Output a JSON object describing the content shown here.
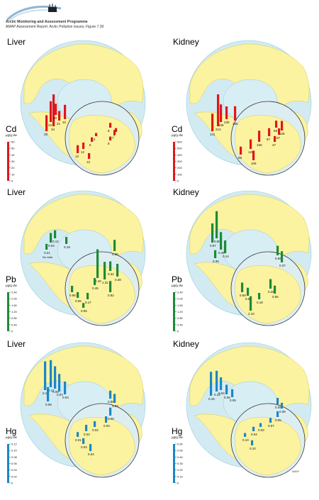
{
  "header": {
    "organization": "Arctic Monitoring and Assessment Programme",
    "report": "AMAP Assessment Report: Arctic Pollution Issues, Figure 7.39"
  },
  "credit": "AMAP",
  "colors": {
    "ocean": "#d2ebf2",
    "land": "#fbf3a0",
    "sea": "#d7eef4",
    "cd": "#e0161d",
    "pb": "#1e8a36",
    "hg": "#1b87c4"
  },
  "panels": [
    {
      "id": "cd-liver",
      "organ": "Liver",
      "metal": "Cd",
      "unit": "µg/g dw",
      "color": "#e0161d",
      "scale": {
        "max": 60,
        "ticks": [
          0,
          10,
          20,
          30,
          40,
          50,
          60
        ]
      },
      "main_labels": [
        "28",
        "34",
        "23",
        "22",
        "21",
        "20",
        "8",
        "7"
      ],
      "inset_labels": [
        "8",
        "9",
        "4",
        "6",
        "12",
        "13",
        "12"
      ],
      "no_data": ""
    },
    {
      "id": "cd-kidney",
      "organ": "Kidney",
      "metal": "Cd",
      "unit": "µg/g dw",
      "color": "#e0161d",
      "scale": {
        "max": 600,
        "ticks": [
          0,
          100,
          200,
          300,
          400,
          500,
          600
        ]
      },
      "main_labels": [
        "141",
        "213",
        "106",
        "155",
        "229",
        "47",
        "67"
      ],
      "inset_labels": [
        "68",
        "128",
        "87",
        "160",
        "129",
        "88",
        "109"
      ],
      "no_data": ""
    },
    {
      "id": "pb-liver",
      "organ": "Liver",
      "metal": "Pb",
      "unit": "µg/g dw",
      "color": "#1e8a36",
      "scale": {
        "max": 2.4,
        "ticks": [
          "0",
          "0.40",
          "0.80",
          "1.20",
          "1.60",
          "2.00",
          "2.40"
        ]
      },
      "main_labels": [
        "0.04",
        "0.12",
        "0.19",
        "0.21",
        "0.36",
        "0.32",
        "0.38",
        "2.40",
        "1.31"
      ],
      "inset_labels": [
        "0.98",
        "0.06",
        "0.17",
        "0.45",
        "0.05",
        "0.82"
      ],
      "no_data": "No data"
    },
    {
      "id": "pb-kidney",
      "organ": "Kidney",
      "metal": "Pb",
      "unit": "µg/g dw",
      "color": "#1e8a36",
      "scale": {
        "max": 2.4,
        "ticks": [
          "0",
          "0.40",
          "0.80",
          "1.20",
          "1.60",
          "2.00",
          "2.40"
        ]
      },
      "main_labels": [
        "0.97",
        "0.80",
        "0.46",
        "0.14",
        "0.36",
        "0.56",
        "0.37"
      ],
      "inset_labels": [
        "0.59",
        "0.50",
        "0.18",
        "0.25",
        "0.55",
        "2.10"
      ],
      "no_data": ""
    },
    {
      "id": "hg-liver",
      "organ": "Liver",
      "metal": "Hg",
      "unit": "µg/g dw",
      "color": "#1b87c4",
      "scale": {
        "max": 0.12,
        "ticks": [
          "0",
          "0.02",
          "0.04",
          "0.06",
          "0.08",
          "0.10",
          "0.12"
        ]
      },
      "main_labels": [
        "0.15",
        "0.11",
        "0.05",
        "0.04",
        "0.03",
        "0.06",
        "0.03",
        "0.08"
      ],
      "inset_labels": [
        "0.05",
        "0.03",
        "0.02",
        "0.04",
        "0.01",
        "0.04",
        "0.04"
      ],
      "no_data": ""
    },
    {
      "id": "hg-kidney",
      "organ": "Kidney",
      "metal": "Hg",
      "unit": "µg/g dw",
      "color": "#1b87c4",
      "scale": {
        "max": 0.6,
        "ticks": [
          "0",
          "0.10",
          "0.20",
          "0.30",
          "0.40",
          "0.50",
          "0.60"
        ]
      },
      "main_labels": [
        "0.15",
        "0.12",
        "0.04",
        "0.06",
        "0.05",
        "0.09",
        "0.08"
      ],
      "inset_labels": [
        "0.05",
        "0.07",
        "0.03",
        "0.04",
        "0.10",
        "0.10"
      ],
      "no_data": ""
    }
  ]
}
